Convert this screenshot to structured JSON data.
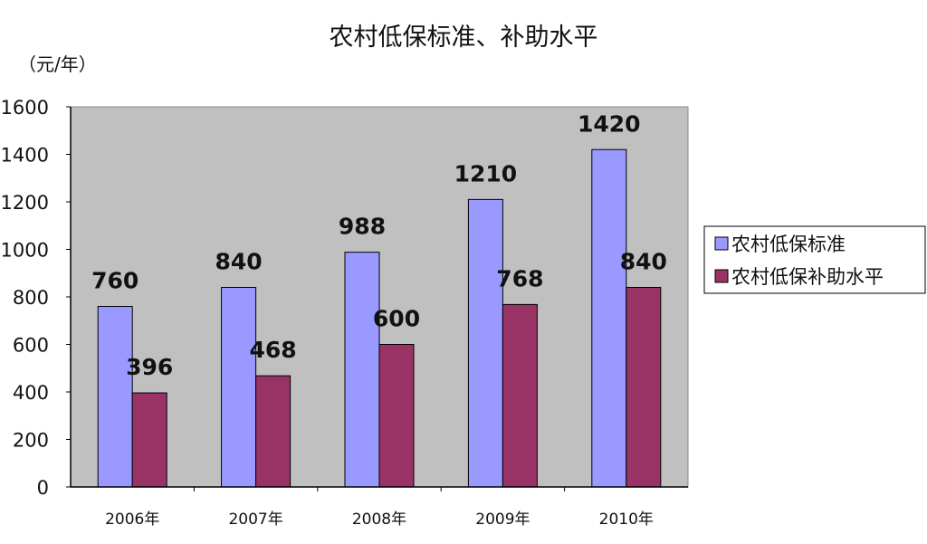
{
  "chart_data": {
    "type": "bar",
    "title": "农村低保标准、补助水平",
    "ylabel": "（元/年）",
    "xlabel": "",
    "categories": [
      "2006年",
      "2007年",
      "2008年",
      "2009年",
      "2010年"
    ],
    "series": [
      {
        "name": "农村低保标准",
        "values": [
          760,
          840,
          988,
          1210,
          1420
        ],
        "color": "#9999ff"
      },
      {
        "name": "农村低保补助水平",
        "values": [
          396,
          468,
          600,
          768,
          840
        ],
        "color": "#993366"
      }
    ],
    "ylim": [
      0,
      1600
    ],
    "yticks": [
      "0",
      "200",
      "400",
      "600",
      "800",
      "1000",
      "1200",
      "1400",
      "1600"
    ],
    "grid": false,
    "legend": "right",
    "plot_background": "#c0c0c0",
    "data_labels": true
  }
}
